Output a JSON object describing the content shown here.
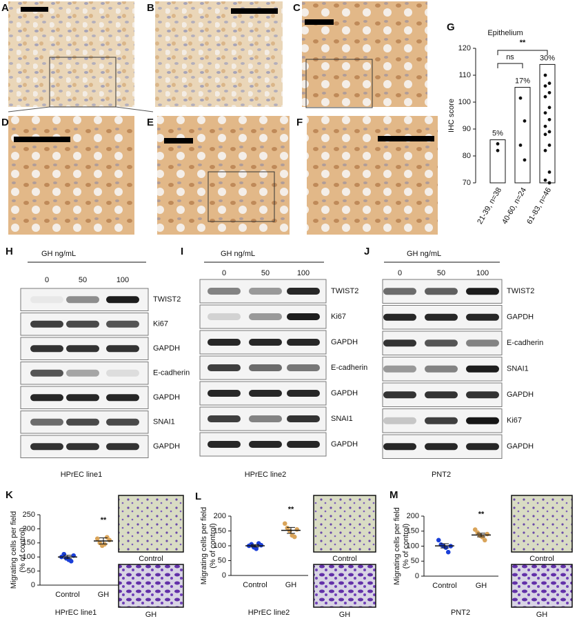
{
  "panel_labels": [
    "A",
    "B",
    "C",
    "D",
    "E",
    "F"
  ],
  "blots": [
    {
      "label": "H",
      "header": "GH ng/mL",
      "doses": [
        "0",
        "50",
        "100"
      ],
      "rows": [
        "TWIST2",
        "Ki67",
        "GAPDH",
        "E-cadherin",
        "GAPDH",
        "SNAI1",
        "GAPDH"
      ],
      "caption": "HPrEC line1"
    },
    {
      "label": "I",
      "header": "GH ng/mL",
      "doses": [
        "0",
        "50",
        "100"
      ],
      "rows": [
        "TWIST2",
        "Ki67",
        "GAPDH",
        "E-cadherin",
        "GAPDH",
        "SNAI1",
        "GAPDH"
      ],
      "caption": "HPrEC line2"
    },
    {
      "label": "J",
      "header": "GH ng/mL",
      "doses": [
        "0",
        "50",
        "100"
      ],
      "rows": [
        "TWIST2",
        "GAPDH",
        "E-cadherin",
        "SNAI1",
        "GAPDH",
        "Ki67",
        "GAPDH"
      ],
      "caption": "PNT2"
    }
  ],
  "chart_data": [
    {
      "type": "bar",
      "panel": "G",
      "title": "Epithelium",
      "y_label": "IHC score",
      "categories": [
        "21-39, n=38",
        "40-60, n=24",
        "61-83, n=46"
      ],
      "values": [
        86,
        105.5,
        114
      ],
      "annotations": [
        "5%",
        "17%",
        "30%"
      ],
      "points": [
        [
          84.5,
          82
        ],
        [
          101.5,
          93,
          84,
          78.5
        ],
        [
          110,
          107,
          106,
          103.5,
          102,
          98,
          96,
          93.5,
          91,
          89,
          88,
          84,
          82,
          74,
          71,
          70
        ]
      ],
      "ylim": [
        70,
        120
      ],
      "yticks": [
        70,
        80,
        90,
        100,
        110,
        120
      ],
      "significance": [
        "ns",
        "**"
      ]
    },
    {
      "type": "dot",
      "panel": "K",
      "y_label": [
        "Migrating cells per field",
        "(% of control)"
      ],
      "x_label": "HPrEC line1",
      "categories": [
        "Control",
        "GH"
      ],
      "colors": [
        "#1a3fd8",
        "#d9a45a"
      ],
      "points": [
        [
          100,
          110,
          95,
          90,
          85,
          105
        ],
        [
          165,
          150,
          140,
          145,
          170,
          160
        ]
      ],
      "means": [
        100,
        157
      ],
      "errors": [
        6,
        11
      ],
      "ylim": [
        0,
        250
      ],
      "yticks": [
        0,
        50,
        100,
        150,
        200,
        250
      ],
      "significance": "**",
      "image_captions": [
        "Control",
        "GH"
      ]
    },
    {
      "type": "dot",
      "panel": "L",
      "y_label": [
        "Migrating cells per field",
        "(% of control)"
      ],
      "x_label": "HPrEC line2",
      "categories": [
        "Control",
        "GH"
      ],
      "colors": [
        "#1a3fd8",
        "#d9a45a"
      ],
      "points": [
        [
          100,
          105,
          95,
          90,
          108,
          102
        ],
        [
          175,
          160,
          150,
          135,
          130,
          155
        ]
      ],
      "means": [
        100,
        152
      ],
      "errors": [
        4,
        10
      ],
      "ylim": [
        0,
        200
      ],
      "yticks": [
        0,
        50,
        100,
        150,
        200
      ],
      "significance": "**",
      "image_captions": [
        "Control",
        "GH"
      ]
    },
    {
      "type": "dot",
      "panel": "M",
      "y_label": [
        "Migrating cells per field",
        "(% of control)"
      ],
      "x_label": "PNT2",
      "categories": [
        "Control",
        "GH"
      ],
      "colors": [
        "#1a3fd8",
        "#d9a45a"
      ],
      "points": [
        [
          120,
          105,
          100,
          95,
          80,
          100
        ],
        [
          155,
          145,
          135,
          130,
          120,
          140
        ]
      ],
      "means": [
        101,
        137
      ],
      "errors": [
        7,
        6
      ],
      "ylim": [
        0,
        200
      ],
      "yticks": [
        0,
        50,
        100,
        150,
        200
      ],
      "significance": "**",
      "image_captions": [
        "Control",
        "GH"
      ]
    }
  ]
}
